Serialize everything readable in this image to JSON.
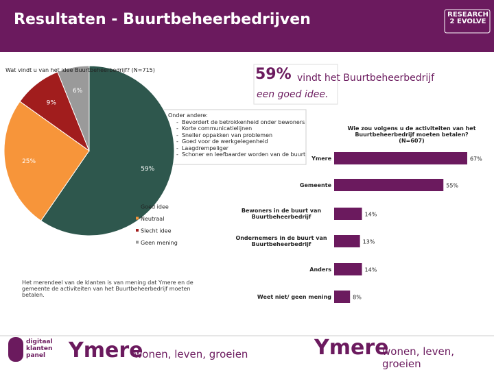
{
  "header": {
    "title": "Resultaten - Buurtbeheerbedrijven",
    "logo": [
      "RESEARCH",
      "2",
      "EVOLVE"
    ]
  },
  "callout": {
    "big": "59%",
    "text": "vindt het Buurtbeheerbedrijf",
    "text2": "een goed idee."
  },
  "reasons": {
    "intro": "Onder andere:",
    "items": [
      "Bevordert de betrokkenheid onder bewoners",
      "Korte communicatielijnen",
      "Sneller oppakken van problemen",
      "Goed voor de werkgelegenheid",
      "Laagdrempeliger",
      "Schoner en leefbaarder worden van de buurt"
    ]
  },
  "note": "Het merendeel van de klanten is van mening dat Ymere en de gemeente de activiteiten van het Buurtbeheerbedrijf moeten betalen.",
  "footer": {
    "panel": [
      "digitaal",
      "klanten",
      "panel"
    ],
    "brand": "Ymere",
    "slogan": "wonen, leven, groeien"
  },
  "chart_data": [
    {
      "type": "pie",
      "title": "Wat vindt u van het idee Buurtbeheerbedrijf? (N=715)",
      "categories": [
        "Goed idee",
        "Neutraal",
        "Slecht idee",
        "Geen mening"
      ],
      "values": [
        59,
        25,
        9,
        6
      ],
      "value_labels": [
        "59%",
        "25%",
        "9%",
        "6%"
      ],
      "colors": [
        "#2e574d",
        "#f7953a",
        "#a11d1d",
        "#9a9a9a"
      ]
    },
    {
      "type": "hbar",
      "title": "Wie zou volgens u de activiteiten van het Buurtbeheerbedrijf moeten betalen? (N=607)",
      "categories": [
        "Ymere",
        "Gemeente",
        "Bewoners in de buurt van Buurtbeheerbedrijf",
        "Ondernemers in de buurt van Buurtbeheerbedrijf",
        "Anders",
        "Weet niet/ geen mening"
      ],
      "values": [
        67,
        55,
        14,
        13,
        14,
        8
      ],
      "value_labels": [
        "67%",
        "55%",
        "14%",
        "13%",
        "14%",
        "8%"
      ],
      "color": "#6b1a5e"
    }
  ]
}
